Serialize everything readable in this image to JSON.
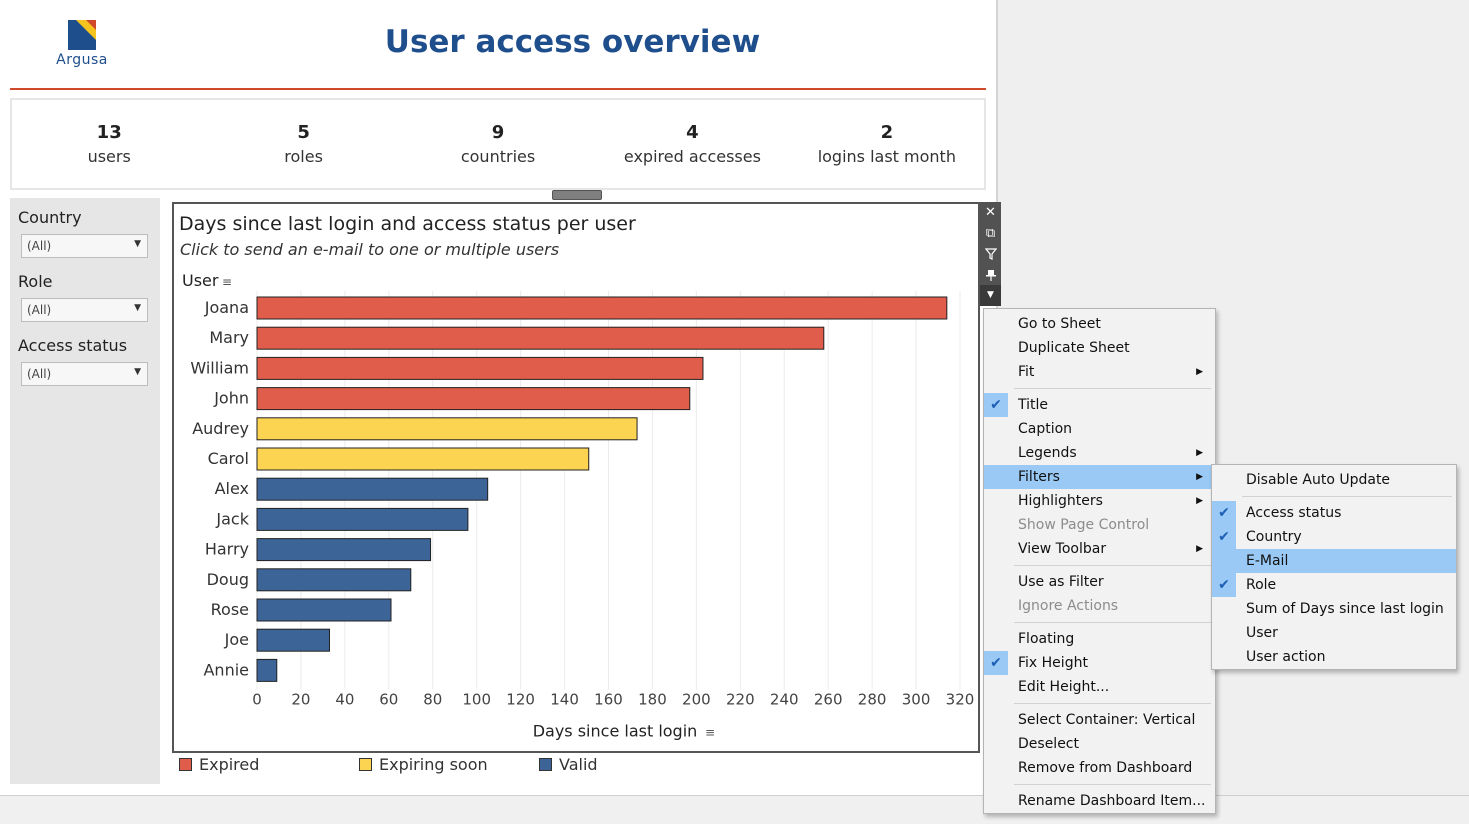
{
  "brand": {
    "logo_text": "Argusa",
    "colors": {
      "navy": "#1f4e8c",
      "yellow": "#f5c41f",
      "red": "#d0492c"
    }
  },
  "title": "User access overview",
  "kpis": [
    {
      "value": "13",
      "label": "users"
    },
    {
      "value": "5",
      "label": "roles"
    },
    {
      "value": "9",
      "label": "countries"
    },
    {
      "value": "4",
      "label": "expired accesses"
    },
    {
      "value": "2",
      "label": "logins last month"
    }
  ],
  "filters": [
    {
      "label": "Country",
      "value": "(All)"
    },
    {
      "label": "Role",
      "value": "(All)"
    },
    {
      "label": "Access status",
      "value": "(All)"
    }
  ],
  "chart": {
    "title": "Days since last login and access status per user",
    "subtitle": "Click to send an e-mail to one or multiple users",
    "row_header": "User",
    "x_title": "Days since last login"
  },
  "chart_data": {
    "type": "bar",
    "orientation": "horizontal",
    "categories": [
      "Joana",
      "Mary",
      "William",
      "John",
      "Audrey",
      "Carol",
      "Alex",
      "Jack",
      "Harry",
      "Doug",
      "Rose",
      "Joe",
      "Annie"
    ],
    "values": [
      314,
      258,
      203,
      197,
      173,
      151,
      105,
      96,
      79,
      70,
      61,
      33,
      9
    ],
    "status": [
      "Expired",
      "Expired",
      "Expired",
      "Expired",
      "Expiring soon",
      "Expiring soon",
      "Valid",
      "Valid",
      "Valid",
      "Valid",
      "Valid",
      "Valid",
      "Valid"
    ],
    "xlabel": "Days since last login",
    "ylabel": "User",
    "xlim": [
      0,
      320
    ],
    "xticks": [
      0,
      20,
      40,
      60,
      80,
      100,
      120,
      140,
      160,
      180,
      200,
      220,
      240,
      260,
      280,
      300,
      320
    ],
    "grid": true,
    "legend": [
      {
        "name": "Expired",
        "color": "#e05c4b"
      },
      {
        "name": "Expiring soon",
        "color": "#fdd451"
      },
      {
        "name": "Valid",
        "color": "#3c6497"
      }
    ],
    "legend_position": "bottom"
  },
  "context_menu": {
    "items": [
      {
        "label": "Go to Sheet"
      },
      {
        "label": "Duplicate Sheet"
      },
      {
        "label": "Fit",
        "submenu": true
      },
      {
        "sep": true
      },
      {
        "label": "Title",
        "checked": true
      },
      {
        "label": "Caption"
      },
      {
        "label": "Legends",
        "submenu": true
      },
      {
        "label": "Filters",
        "submenu": true,
        "highlighted": true
      },
      {
        "label": "Highlighters",
        "submenu": true
      },
      {
        "label": "Show Page Control",
        "disabled": true
      },
      {
        "label": "View Toolbar",
        "submenu": true
      },
      {
        "sep": true
      },
      {
        "label": "Use as Filter"
      },
      {
        "label": "Ignore Actions",
        "disabled": true
      },
      {
        "sep": true
      },
      {
        "label": "Floating"
      },
      {
        "label": "Fix Height",
        "checked": true
      },
      {
        "label": "Edit Height..."
      },
      {
        "sep": true
      },
      {
        "label": "Select Container: Vertical"
      },
      {
        "label": "Deselect"
      },
      {
        "label": "Remove from Dashboard"
      },
      {
        "sep": true
      },
      {
        "label": "Rename Dashboard Item..."
      }
    ]
  },
  "filters_submenu": {
    "items": [
      {
        "label": "Disable Auto Update"
      },
      {
        "sep": true
      },
      {
        "label": "Access status",
        "checked": true
      },
      {
        "label": "Country",
        "checked": true
      },
      {
        "label": "E-Mail",
        "highlighted": true
      },
      {
        "label": "Role",
        "checked": true
      },
      {
        "label": "Sum of Days since last login"
      },
      {
        "label": "User"
      },
      {
        "label": "User action"
      }
    ]
  }
}
